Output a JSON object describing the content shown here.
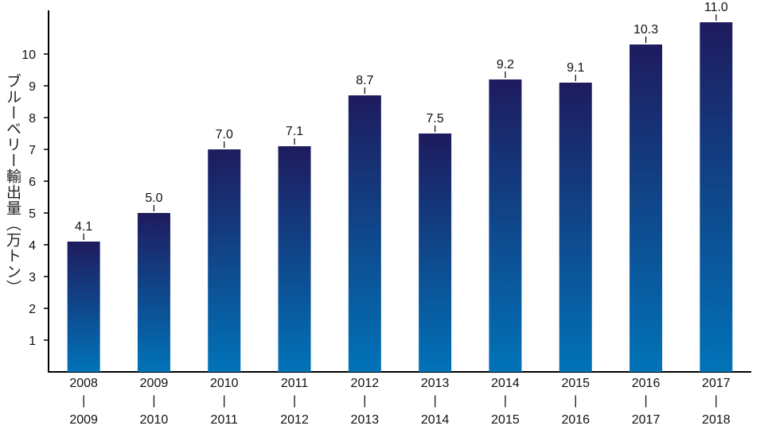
{
  "chart_data": {
    "type": "bar",
    "categories": [
      {
        "from": "2008",
        "sep": "|",
        "to": "2009"
      },
      {
        "from": "2009",
        "sep": "|",
        "to": "2010"
      },
      {
        "from": "2010",
        "sep": "|",
        "to": "2011"
      },
      {
        "from": "2011",
        "sep": "|",
        "to": "2012"
      },
      {
        "from": "2012",
        "sep": "|",
        "to": "2013"
      },
      {
        "from": "2013",
        "sep": "|",
        "to": "2014"
      },
      {
        "from": "2014",
        "sep": "|",
        "to": "2015"
      },
      {
        "from": "2015",
        "sep": "|",
        "to": "2016"
      },
      {
        "from": "2016",
        "sep": "|",
        "to": "2017"
      },
      {
        "from": "2017",
        "sep": "|",
        "to": "2018"
      }
    ],
    "values": [
      4.1,
      5.0,
      7.0,
      7.1,
      8.7,
      7.5,
      9.2,
      9.1,
      10.3,
      11.0
    ],
    "value_labels": [
      "4.1",
      "5.0",
      "7.0",
      "7.1",
      "8.7",
      "7.5",
      "9.2",
      "9.1",
      "10.3",
      "11.0"
    ],
    "title": "",
    "xlabel": "",
    "ylabel": "ブルーベリー輸出量（万トン）",
    "ylim": [
      0,
      11.3
    ],
    "yticks": [
      "1",
      "2",
      "3",
      "4",
      "5",
      "6",
      "7",
      "8",
      "9",
      "10"
    ],
    "bar_gradient": {
      "top": "#1e1b5e",
      "bottom": "#0173b8"
    },
    "grid": false
  }
}
